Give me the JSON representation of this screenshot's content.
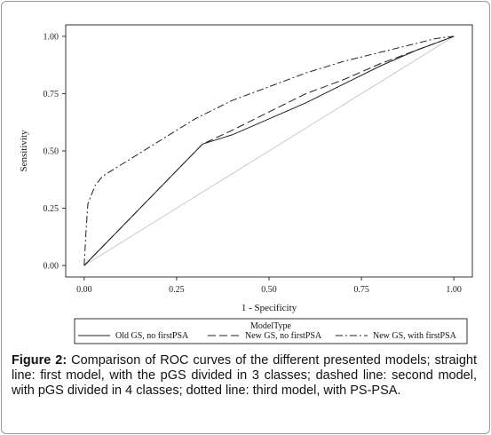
{
  "chart_data": {
    "type": "line",
    "xlabel": "1 - Specificity",
    "ylabel": "Sensitivity",
    "xlim": [
      -0.05,
      1.05
    ],
    "ylim": [
      -0.05,
      1.05
    ],
    "x_ticks": [
      "0.00",
      "0.25",
      "0.50",
      "0.75",
      "1.00"
    ],
    "y_ticks": [
      "0.00",
      "0.25",
      "0.50",
      "0.75",
      "1.00"
    ],
    "grid": false,
    "legend_title": "ModelType",
    "legend_placement": "bottom",
    "reference_line": {
      "x": [
        0,
        1
      ],
      "y": [
        0,
        1
      ],
      "color": "#cccccc"
    },
    "series": [
      {
        "name": "Old GS, no firstPSA",
        "style": "solid",
        "x": [
          0,
          0.32,
          0.4,
          0.5,
          0.6,
          0.7,
          0.8,
          0.9,
          0.95,
          1.0
        ],
        "y": [
          0,
          0.53,
          0.57,
          0.64,
          0.71,
          0.79,
          0.87,
          0.94,
          0.97,
          1.0
        ]
      },
      {
        "name": "New GS, no firstPSA",
        "style": "dashed",
        "x": [
          0,
          0.32,
          0.4,
          0.5,
          0.6,
          0.7,
          0.8,
          0.9,
          0.95,
          1.0
        ],
        "y": [
          0,
          0.53,
          0.59,
          0.67,
          0.75,
          0.81,
          0.88,
          0.94,
          0.97,
          1.0
        ]
      },
      {
        "name": "New GS, with firstPSA",
        "style": "dashdot",
        "x": [
          0,
          0.005,
          0.01,
          0.02,
          0.03,
          0.05,
          0.1,
          0.2,
          0.3,
          0.4,
          0.5,
          0.6,
          0.7,
          0.8,
          0.9,
          0.95,
          1.0
        ],
        "y": [
          0,
          0.15,
          0.27,
          0.31,
          0.35,
          0.39,
          0.44,
          0.54,
          0.64,
          0.72,
          0.78,
          0.84,
          0.89,
          0.93,
          0.97,
          0.99,
          1.0
        ]
      }
    ]
  },
  "caption": {
    "label": "Figure 2:",
    "text": " Comparison of ROC curves of the different presented models; straight line: first model, with the pGS divided in 3 classes; dashed line: second model, with pGS divided in 4 classes; dotted line: third model, with PS-PSA."
  }
}
